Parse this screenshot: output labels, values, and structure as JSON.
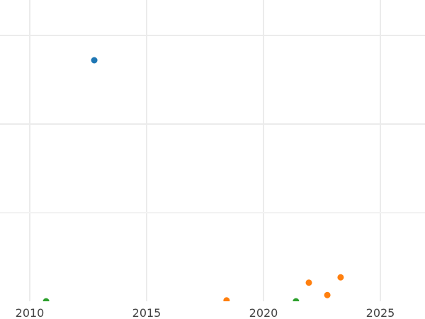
{
  "chart_data": {
    "type": "scatter",
    "title": "",
    "xlabel": "",
    "ylabel": "",
    "xlim": [
      2009.2,
      2027.2
    ],
    "ylim": [
      0,
      3.4
    ],
    "x_ticks": [
      "2010",
      "2015",
      "2020",
      "2025"
    ],
    "y_gridlines": [
      1,
      2,
      3
    ],
    "grid": true,
    "legend": "none",
    "series": [
      {
        "color": "#1f77b4",
        "points": [
          {
            "x": 2012.76,
            "y": 2.72
          }
        ]
      },
      {
        "color": "#ff7f0e",
        "points": [
          {
            "x": 2018.42,
            "y": 0.01
          },
          {
            "x": 2021.94,
            "y": 0.21
          },
          {
            "x": 2022.73,
            "y": 0.07
          },
          {
            "x": 2023.3,
            "y": 0.27
          }
        ]
      },
      {
        "color": "#2ca02c",
        "points": [
          {
            "x": 2010.7,
            "y": 0.0
          },
          {
            "x": 2021.39,
            "y": 0.0
          }
        ]
      }
    ]
  }
}
